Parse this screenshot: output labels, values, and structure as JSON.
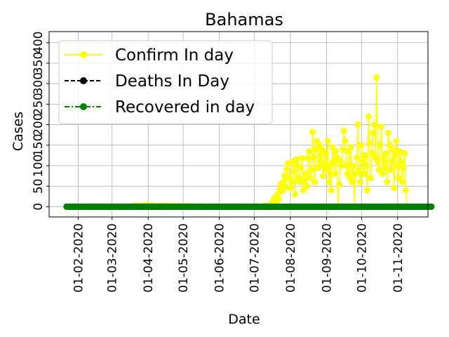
{
  "chart_data": {
    "type": "line",
    "title": "Bahamas",
    "xlabel": "Date",
    "ylabel": "Cases",
    "x_tick_labels": [
      "01-02-2020",
      "01-03-2020",
      "01-04-2020",
      "01-05-2020",
      "01-06-2020",
      "01-07-2020",
      "01-08-2020",
      "01-09-2020",
      "01-10-2020",
      "01-11-2020"
    ],
    "y_tick_labels": [
      "0",
      "50",
      "100",
      "150",
      "200",
      "250",
      "300",
      "350",
      "400"
    ],
    "xlim": [
      "2020-01-07",
      "2020-11-27"
    ],
    "ylim": [
      -25,
      427
    ],
    "grid": true,
    "legend_position": "top-left",
    "date_start": "2020-01-22",
    "series": [
      {
        "name": "Confirm In day",
        "color": "#ffff00",
        "linestyle": "solid",
        "values": [
          0,
          0,
          0,
          0,
          0,
          0,
          0,
          0,
          0,
          0,
          0,
          0,
          0,
          0,
          0,
          0,
          0,
          0,
          0,
          0,
          0,
          0,
          0,
          0,
          0,
          0,
          0,
          0,
          0,
          0,
          0,
          0,
          0,
          0,
          0,
          0,
          0,
          0,
          0,
          0,
          0,
          0,
          0,
          0,
          0,
          0,
          0,
          0,
          0,
          0,
          0,
          0,
          0,
          0,
          0,
          0,
          0,
          2,
          0,
          1,
          3,
          0,
          1,
          2,
          0,
          2,
          3,
          0,
          1,
          4,
          2,
          1,
          0,
          3,
          2,
          1,
          0,
          1,
          2,
          0,
          1,
          0,
          2,
          1,
          0,
          3,
          1,
          0,
          0,
          1,
          2,
          0,
          0,
          1,
          0,
          2,
          0,
          1,
          0,
          0,
          1,
          0,
          0,
          0,
          2,
          0,
          0,
          1,
          0,
          0,
          0,
          0,
          0,
          0,
          0,
          1,
          0,
          0,
          0,
          0,
          0,
          0,
          0,
          0,
          0,
          0,
          1,
          0,
          0,
          0,
          0,
          0,
          0,
          0,
          0,
          0,
          0,
          0,
          0,
          0,
          0,
          0,
          0,
          0,
          0,
          0,
          0,
          0,
          0,
          0,
          0,
          0,
          0,
          0,
          0,
          0,
          0,
          0,
          0,
          0,
          0,
          0,
          0,
          1,
          0,
          0,
          0,
          0,
          0,
          0,
          2,
          0,
          1,
          3,
          2,
          5,
          8,
          12,
          20,
          10,
          25,
          30,
          18,
          42,
          55,
          38,
          60,
          75,
          48,
          90,
          105,
          70,
          45,
          60,
          110,
          85,
          30,
          115,
          100,
          70,
          60,
          95,
          118,
          40,
          65,
          80,
          50,
          118,
          135,
          70,
          90,
          182,
          120,
          60,
          140,
          160,
          95,
          150,
          110,
          140,
          75,
          100,
          130,
          90,
          160,
          60,
          100,
          40,
          145,
          110,
          80,
          135,
          120,
          0,
          55,
          110,
          100,
          140,
          185,
          160,
          100,
          80,
          135,
          70,
          145,
          60,
          100,
          0,
          80,
          120,
          200,
          90,
          60,
          150,
          110,
          80,
          125,
          100,
          40,
          220,
          155,
          70,
          130,
          180,
          200,
          120,
          315,
          110,
          90,
          150,
          195,
          80,
          120,
          95,
          130,
          60,
          180,
          150,
          90,
          110,
          140,
          45,
          125,
          160,
          100,
          70,
          135,
          110,
          60,
          95,
          130,
          40,
          0
        ]
      },
      {
        "name": "Deaths In Day",
        "color": "#000000",
        "linestyle": "dashed",
        "values": [
          0,
          0,
          0,
          0,
          0,
          0,
          0,
          0,
          0,
          0,
          0,
          0,
          0,
          0,
          0,
          0,
          0,
          0,
          0,
          0,
          0,
          0,
          0,
          0,
          0,
          0,
          0,
          0,
          0,
          0,
          0,
          0,
          0,
          0,
          0,
          0,
          0,
          0,
          0,
          0,
          0,
          0,
          0,
          0,
          0,
          0,
          0,
          0,
          0,
          0,
          0,
          0,
          0,
          0,
          0,
          0,
          0,
          0,
          0,
          0,
          0,
          0,
          0,
          0,
          0,
          0,
          0,
          0,
          0,
          0,
          0,
          0,
          0,
          0,
          0,
          0,
          0,
          0,
          0,
          0,
          0,
          0,
          0,
          0,
          0,
          0,
          0,
          0,
          0,
          0,
          0,
          0,
          0,
          0,
          0,
          0,
          0,
          0,
          0,
          0,
          0,
          0,
          0,
          0,
          0,
          0,
          0,
          0,
          0,
          0,
          0,
          0,
          0,
          0,
          0,
          0,
          0,
          0,
          0,
          0,
          0,
          0,
          0,
          0,
          0,
          0,
          0,
          0,
          0,
          0,
          0,
          0,
          0,
          0,
          0,
          0,
          0,
          0,
          0,
          0,
          0,
          0,
          0,
          0,
          0,
          0,
          0,
          0,
          0,
          0,
          0,
          0,
          0,
          0,
          0,
          0,
          0,
          0,
          0,
          0,
          0,
          0,
          0,
          0,
          0,
          0,
          0,
          0,
          0,
          0,
          0,
          0,
          0,
          0,
          0,
          0,
          0,
          0,
          0,
          0,
          0,
          0,
          0,
          0,
          0,
          0,
          0,
          0,
          0,
          0,
          0,
          0,
          0,
          0,
          0,
          0,
          0,
          0,
          0,
          0,
          0,
          0,
          0,
          0,
          0,
          0,
          0,
          0,
          0,
          0,
          0,
          0,
          0,
          0,
          0,
          0,
          0,
          0,
          0,
          0,
          0,
          0,
          0,
          0,
          0,
          0,
          0,
          0,
          0,
          0,
          0,
          0,
          0,
          0,
          0,
          0,
          0,
          0,
          0,
          0,
          0,
          0,
          0,
          0,
          0,
          0,
          0,
          0,
          0,
          0,
          0,
          0,
          0,
          0,
          0,
          0,
          0,
          0,
          0,
          0,
          0,
          0,
          0,
          0,
          0,
          0,
          0,
          0,
          0,
          0,
          0,
          0,
          0,
          0,
          0,
          0,
          0,
          0,
          0,
          0,
          0,
          0,
          0,
          0,
          0,
          0,
          0,
          0,
          0,
          0,
          0,
          0,
          0,
          0,
          0,
          0,
          0,
          0,
          0,
          0,
          0,
          0,
          0,
          0,
          0,
          0,
          0,
          0,
          0
        ]
      },
      {
        "name": "Recovered in day",
        "color": "#008000",
        "linestyle": "dashdot",
        "values": [
          0,
          0,
          0,
          0,
          0,
          0,
          0,
          0,
          0,
          0,
          0,
          0,
          0,
          0,
          0,
          0,
          0,
          0,
          0,
          0,
          0,
          0,
          0,
          0,
          0,
          0,
          0,
          0,
          0,
          0,
          0,
          0,
          0,
          0,
          0,
          0,
          0,
          0,
          0,
          0,
          0,
          0,
          0,
          0,
          0,
          0,
          0,
          0,
          0,
          0,
          0,
          0,
          0,
          0,
          0,
          0,
          0,
          0,
          0,
          0,
          0,
          0,
          0,
          0,
          0,
          0,
          0,
          0,
          0,
          0,
          0,
          0,
          0,
          0,
          0,
          0,
          0,
          0,
          0,
          0,
          0,
          0,
          0,
          0,
          0,
          0,
          0,
          0,
          0,
          0,
          0,
          0,
          0,
          0,
          0,
          0,
          0,
          0,
          0,
          0,
          0,
          0,
          0,
          0,
          0,
          0,
          0,
          0,
          0,
          0,
          0,
          0,
          0,
          0,
          0,
          0,
          0,
          0,
          0,
          0,
          0,
          0,
          0,
          0,
          0,
          0,
          0,
          0,
          0,
          0,
          0,
          0,
          0,
          0,
          0,
          0,
          0,
          0,
          0,
          0,
          0,
          0,
          0,
          0,
          0,
          0,
          0,
          0,
          0,
          0,
          0,
          0,
          0,
          0,
          0,
          0,
          0,
          0,
          0,
          0,
          0,
          0,
          0,
          0,
          0,
          0,
          0,
          0,
          0,
          0,
          0,
          0,
          0,
          0,
          0,
          0,
          0,
          0,
          0,
          0,
          0,
          0,
          0,
          0,
          0,
          0,
          0,
          0,
          0,
          0,
          0,
          0,
          0,
          0,
          0,
          0,
          0,
          0,
          0,
          0,
          0,
          0,
          0,
          0,
          0,
          0,
          0,
          0,
          0,
          0,
          0,
          0,
          0,
          0,
          0,
          0,
          0,
          0,
          0,
          0,
          0,
          0,
          0,
          0,
          0,
          0,
          0,
          0,
          0,
          0,
          0,
          0,
          0,
          0,
          0,
          0,
          0,
          0,
          0,
          0,
          0,
          0,
          0,
          0,
          0,
          0,
          0,
          0,
          0,
          0,
          0,
          0,
          0,
          0,
          0,
          0,
          0,
          0,
          0,
          0,
          0,
          0,
          0,
          0,
          0,
          0,
          0,
          0,
          0,
          0,
          0,
          0,
          0,
          0,
          0,
          0,
          0,
          0,
          0,
          0,
          0,
          0,
          0,
          0,
          0,
          0,
          0,
          0,
          0,
          0,
          0,
          0,
          0,
          0,
          0,
          0,
          0,
          0,
          0,
          0,
          0,
          0,
          0,
          0,
          0,
          0,
          0,
          0,
          0,
          0,
          0,
          0,
          0,
          0
        ]
      }
    ]
  }
}
